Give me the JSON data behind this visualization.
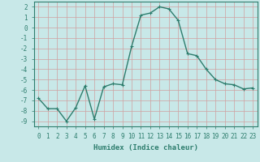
{
  "x": [
    0,
    1,
    2,
    3,
    4,
    5,
    6,
    7,
    8,
    9,
    10,
    11,
    12,
    13,
    14,
    15,
    16,
    17,
    18,
    19,
    20,
    21,
    22,
    23
  ],
  "y": [
    -6.8,
    -7.8,
    -7.8,
    -9.0,
    -7.7,
    -5.6,
    -8.8,
    -5.7,
    -5.4,
    -5.5,
    -1.8,
    1.2,
    1.4,
    2.0,
    1.8,
    0.7,
    -2.5,
    -2.7,
    -4.0,
    -5.0,
    -5.4,
    -5.5,
    -5.9,
    -5.8
  ],
  "line_color": "#2d7d6d",
  "marker": "+",
  "marker_size": 3,
  "bg_color": "#c8e8e8",
  "grid_color": "#b0d0d0",
  "xlabel": "Humidex (Indice chaleur)",
  "xlim": [
    -0.5,
    23.5
  ],
  "ylim": [
    -9.5,
    2.5
  ],
  "yticks": [
    2,
    1,
    0,
    -1,
    -2,
    -3,
    -4,
    -5,
    -6,
    -7,
    -8,
    -9
  ],
  "xticks": [
    0,
    1,
    2,
    3,
    4,
    5,
    6,
    7,
    8,
    9,
    10,
    11,
    12,
    13,
    14,
    15,
    16,
    17,
    18,
    19,
    20,
    21,
    22,
    23
  ],
  "xlabel_fontsize": 6.5,
  "tick_fontsize": 5.5,
  "line_width": 1.0
}
